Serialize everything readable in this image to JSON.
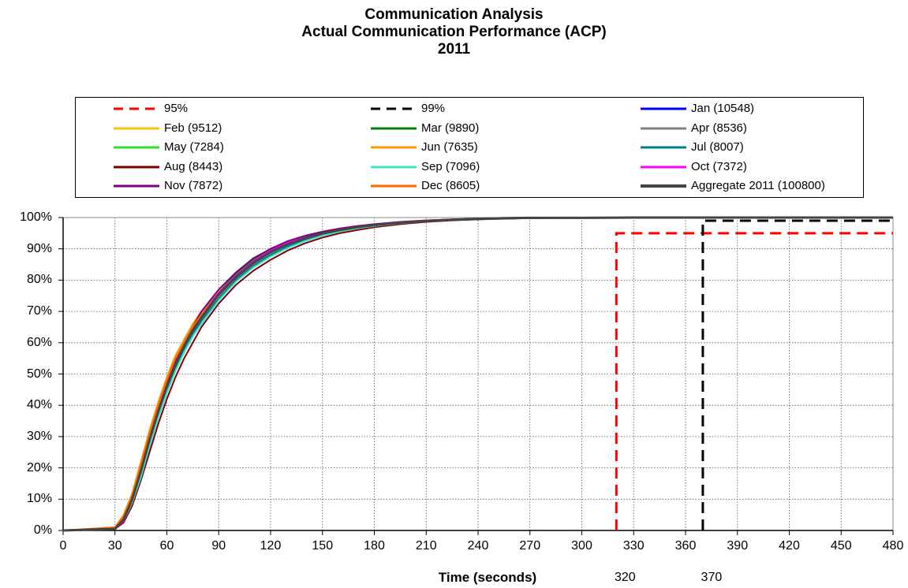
{
  "chart_data": {
    "type": "line",
    "title": "Communication Analysis",
    "subtitle": "Actual Communication Performance (ACP)",
    "year": "2011",
    "xlabel": "Time (seconds)",
    "ylabel": "",
    "xlim": [
      0,
      480
    ],
    "ylim": [
      0,
      100
    ],
    "x_ticks": [
      "0",
      "30",
      "60",
      "90",
      "120",
      "150",
      "180",
      "210",
      "240",
      "270",
      "300",
      "330",
      "360",
      "390",
      "420",
      "450",
      "480"
    ],
    "y_ticks": [
      "0%",
      "10%",
      "20%",
      "30%",
      "40%",
      "50%",
      "60%",
      "70%",
      "80%",
      "90%",
      "100%"
    ],
    "grid": true,
    "legend_position": "top",
    "legend": [
      {
        "label": "95%",
        "color": "#ff0000",
        "style": "dashed"
      },
      {
        "label": "99%",
        "color": "#000000",
        "style": "dashed"
      },
      {
        "label": "Jan (10548)",
        "color": "#0000ff",
        "style": "solid"
      },
      {
        "label": "Feb (9512)",
        "color": "#ffc000",
        "style": "solid"
      },
      {
        "label": "Mar (9890)",
        "color": "#008000",
        "style": "solid"
      },
      {
        "label": "Apr (8536)",
        "color": "#808080",
        "style": "solid"
      },
      {
        "label": "May (7284)",
        "color": "#33dd33",
        "style": "solid"
      },
      {
        "label": "Jun (7635)",
        "color": "#ff9900",
        "style": "solid"
      },
      {
        "label": "Jul (8007)",
        "color": "#008080",
        "style": "solid"
      },
      {
        "label": "Aug (8443)",
        "color": "#800000",
        "style": "solid"
      },
      {
        "label": "Sep (7096)",
        "color": "#40e0d0",
        "style": "solid"
      },
      {
        "label": "Oct (7372)",
        "color": "#ff00ff",
        "style": "solid"
      },
      {
        "label": "Nov (7872)",
        "color": "#800080",
        "style": "solid"
      },
      {
        "label": "Dec (8605)",
        "color": "#ff6600",
        "style": "solid"
      },
      {
        "label": "Aggregate 2011 (100800)",
        "color": "#444444",
        "style": "thick"
      }
    ],
    "x": [
      0,
      30,
      35,
      40,
      45,
      50,
      55,
      60,
      65,
      70,
      75,
      80,
      90,
      100,
      110,
      120,
      130,
      140,
      150,
      160,
      170,
      180,
      195,
      210,
      225,
      240,
      255,
      270,
      300,
      330,
      360,
      390,
      420,
      450,
      480
    ],
    "series": [
      {
        "name": "Jan (10548)",
        "values": [
          0,
          0.5,
          3,
          9,
          18,
          28,
          37,
          45,
          52,
          58,
          63,
          68,
          75,
          80.5,
          85,
          88.5,
          91,
          93,
          94.5,
          95.8,
          96.7,
          97.4,
          98.2,
          98.8,
          99.2,
          99.5,
          99.7,
          99.8,
          99.9,
          100,
          100,
          100,
          100,
          100,
          100
        ]
      },
      {
        "name": "Feb (9512)",
        "values": [
          0,
          1,
          5,
          12,
          21,
          31,
          40,
          48,
          55,
          61,
          66,
          70,
          76.5,
          82,
          86,
          89.5,
          91.8,
          93.6,
          95,
          96.1,
          96.9,
          97.6,
          98.4,
          98.9,
          99.3,
          99.6,
          99.8,
          99.9,
          99.9,
          100,
          100,
          100,
          100,
          100,
          100
        ]
      },
      {
        "name": "Mar (9890)",
        "values": [
          0,
          0.5,
          4,
          10,
          19,
          29,
          38,
          46,
          53,
          59,
          64,
          69,
          76,
          82,
          86.5,
          90,
          92.2,
          94,
          95.3,
          96.3,
          97.1,
          97.7,
          98.5,
          99,
          99.4,
          99.6,
          99.8,
          99.9,
          99.9,
          100,
          100,
          100,
          100,
          100,
          100
        ]
      },
      {
        "name": "Apr (8536)",
        "values": [
          0,
          0.5,
          3,
          9,
          17,
          27,
          36,
          44,
          51,
          57,
          62,
          67,
          74.5,
          80.5,
          85,
          88.5,
          91,
          93,
          94.6,
          95.8,
          96.7,
          97.4,
          98.3,
          98.9,
          99.3,
          99.6,
          99.8,
          99.9,
          99.9,
          100,
          100,
          100,
          100,
          100,
          100
        ]
      },
      {
        "name": "May (7284)",
        "values": [
          0,
          0.5,
          3,
          10,
          19,
          29,
          38,
          46,
          53,
          59,
          64,
          69,
          76,
          81.5,
          86,
          89.5,
          92,
          93.8,
          95.2,
          96.3,
          97.1,
          97.7,
          98.5,
          99,
          99.4,
          99.6,
          99.8,
          99.9,
          99.9,
          100,
          100,
          100,
          100,
          100,
          100
        ]
      },
      {
        "name": "Jun (7635)",
        "values": [
          0,
          1,
          5,
          12,
          22,
          32,
          41,
          49,
          56,
          61,
          66,
          70,
          76,
          81,
          85.5,
          89,
          91.5,
          93.4,
          94.8,
          95.9,
          96.8,
          97.5,
          98.3,
          98.9,
          99.3,
          99.6,
          99.8,
          99.9,
          99.9,
          100,
          100,
          100,
          100,
          100,
          100
        ]
      },
      {
        "name": "Jul (8007)",
        "values": [
          0,
          0.5,
          3,
          9,
          18,
          28,
          37,
          45,
          52,
          58,
          63,
          67,
          74,
          80,
          84.5,
          88,
          90.8,
          92.8,
          94.4,
          95.7,
          96.6,
          97.3,
          98.2,
          98.8,
          99.2,
          99.5,
          99.7,
          99.8,
          99.9,
          100,
          100,
          100,
          100,
          100,
          100
        ]
      },
      {
        "name": "Aug (8443)",
        "values": [
          0,
          0.5,
          2.5,
          8,
          16,
          25,
          34,
          42,
          49,
          55,
          60,
          65,
          72.5,
          78.5,
          83,
          86.5,
          89.5,
          91.8,
          93.6,
          95,
          96,
          96.9,
          97.9,
          98.6,
          99.1,
          99.4,
          99.6,
          99.8,
          99.9,
          100,
          100,
          100,
          100,
          100,
          100
        ]
      },
      {
        "name": "Sep (7096)",
        "values": [
          0,
          0.5,
          3,
          9,
          17,
          27,
          36,
          44,
          51,
          57,
          62,
          66,
          73.5,
          79.5,
          84,
          87.5,
          90.3,
          92.5,
          94.2,
          95.5,
          96.5,
          97.3,
          98.2,
          98.8,
          99.2,
          99.5,
          99.7,
          99.8,
          99.9,
          100,
          100,
          100,
          100,
          100,
          100
        ]
      },
      {
        "name": "Oct (7372)",
        "values": [
          0,
          0.5,
          3,
          10,
          19,
          29,
          38,
          46,
          53,
          59,
          64,
          69,
          76,
          81.5,
          86,
          89.5,
          92,
          93.8,
          95.2,
          96.3,
          97.1,
          97.8,
          98.6,
          99.1,
          99.4,
          99.6,
          99.8,
          99.9,
          99.9,
          100,
          100,
          100,
          100,
          100,
          100
        ]
      },
      {
        "name": "Nov (7872)",
        "values": [
          0,
          0.5,
          4,
          11,
          20,
          30,
          39,
          47,
          54,
          60,
          65,
          70,
          77,
          82.5,
          87,
          90,
          92.5,
          94.2,
          95.5,
          96.5,
          97.3,
          97.9,
          98.6,
          99.1,
          99.4,
          99.6,
          99.8,
          99.9,
          99.9,
          100,
          100,
          100,
          100,
          100,
          100
        ]
      },
      {
        "name": "Dec (8605)",
        "values": [
          0,
          1,
          4.5,
          11,
          21,
          31,
          40,
          48,
          55,
          60,
          65,
          69,
          75.5,
          81,
          85.5,
          89,
          91.5,
          93.4,
          94.9,
          96,
          96.9,
          97.6,
          98.4,
          98.9,
          99.3,
          99.6,
          99.8,
          99.9,
          99.9,
          100,
          100,
          100,
          100,
          100,
          100
        ]
      },
      {
        "name": "Aggregate 2011 (100800)",
        "values": [
          0,
          0.5,
          3.5,
          10,
          19,
          29,
          38,
          46,
          53,
          59,
          64,
          68,
          75.5,
          81,
          85.5,
          89,
          91.5,
          93.4,
          94.9,
          96,
          96.9,
          97.6,
          98.4,
          98.9,
          99.3,
          99.6,
          99.8,
          99.9,
          99.9,
          100,
          100,
          100,
          100,
          100,
          100
        ]
      }
    ],
    "threshold_lines": [
      {
        "name": "95%",
        "x": 320,
        "y": 95,
        "color": "#ff0000",
        "label": "320"
      },
      {
        "name": "99%",
        "x": 370,
        "y": 99,
        "color": "#000000",
        "label": "370"
      }
    ]
  }
}
